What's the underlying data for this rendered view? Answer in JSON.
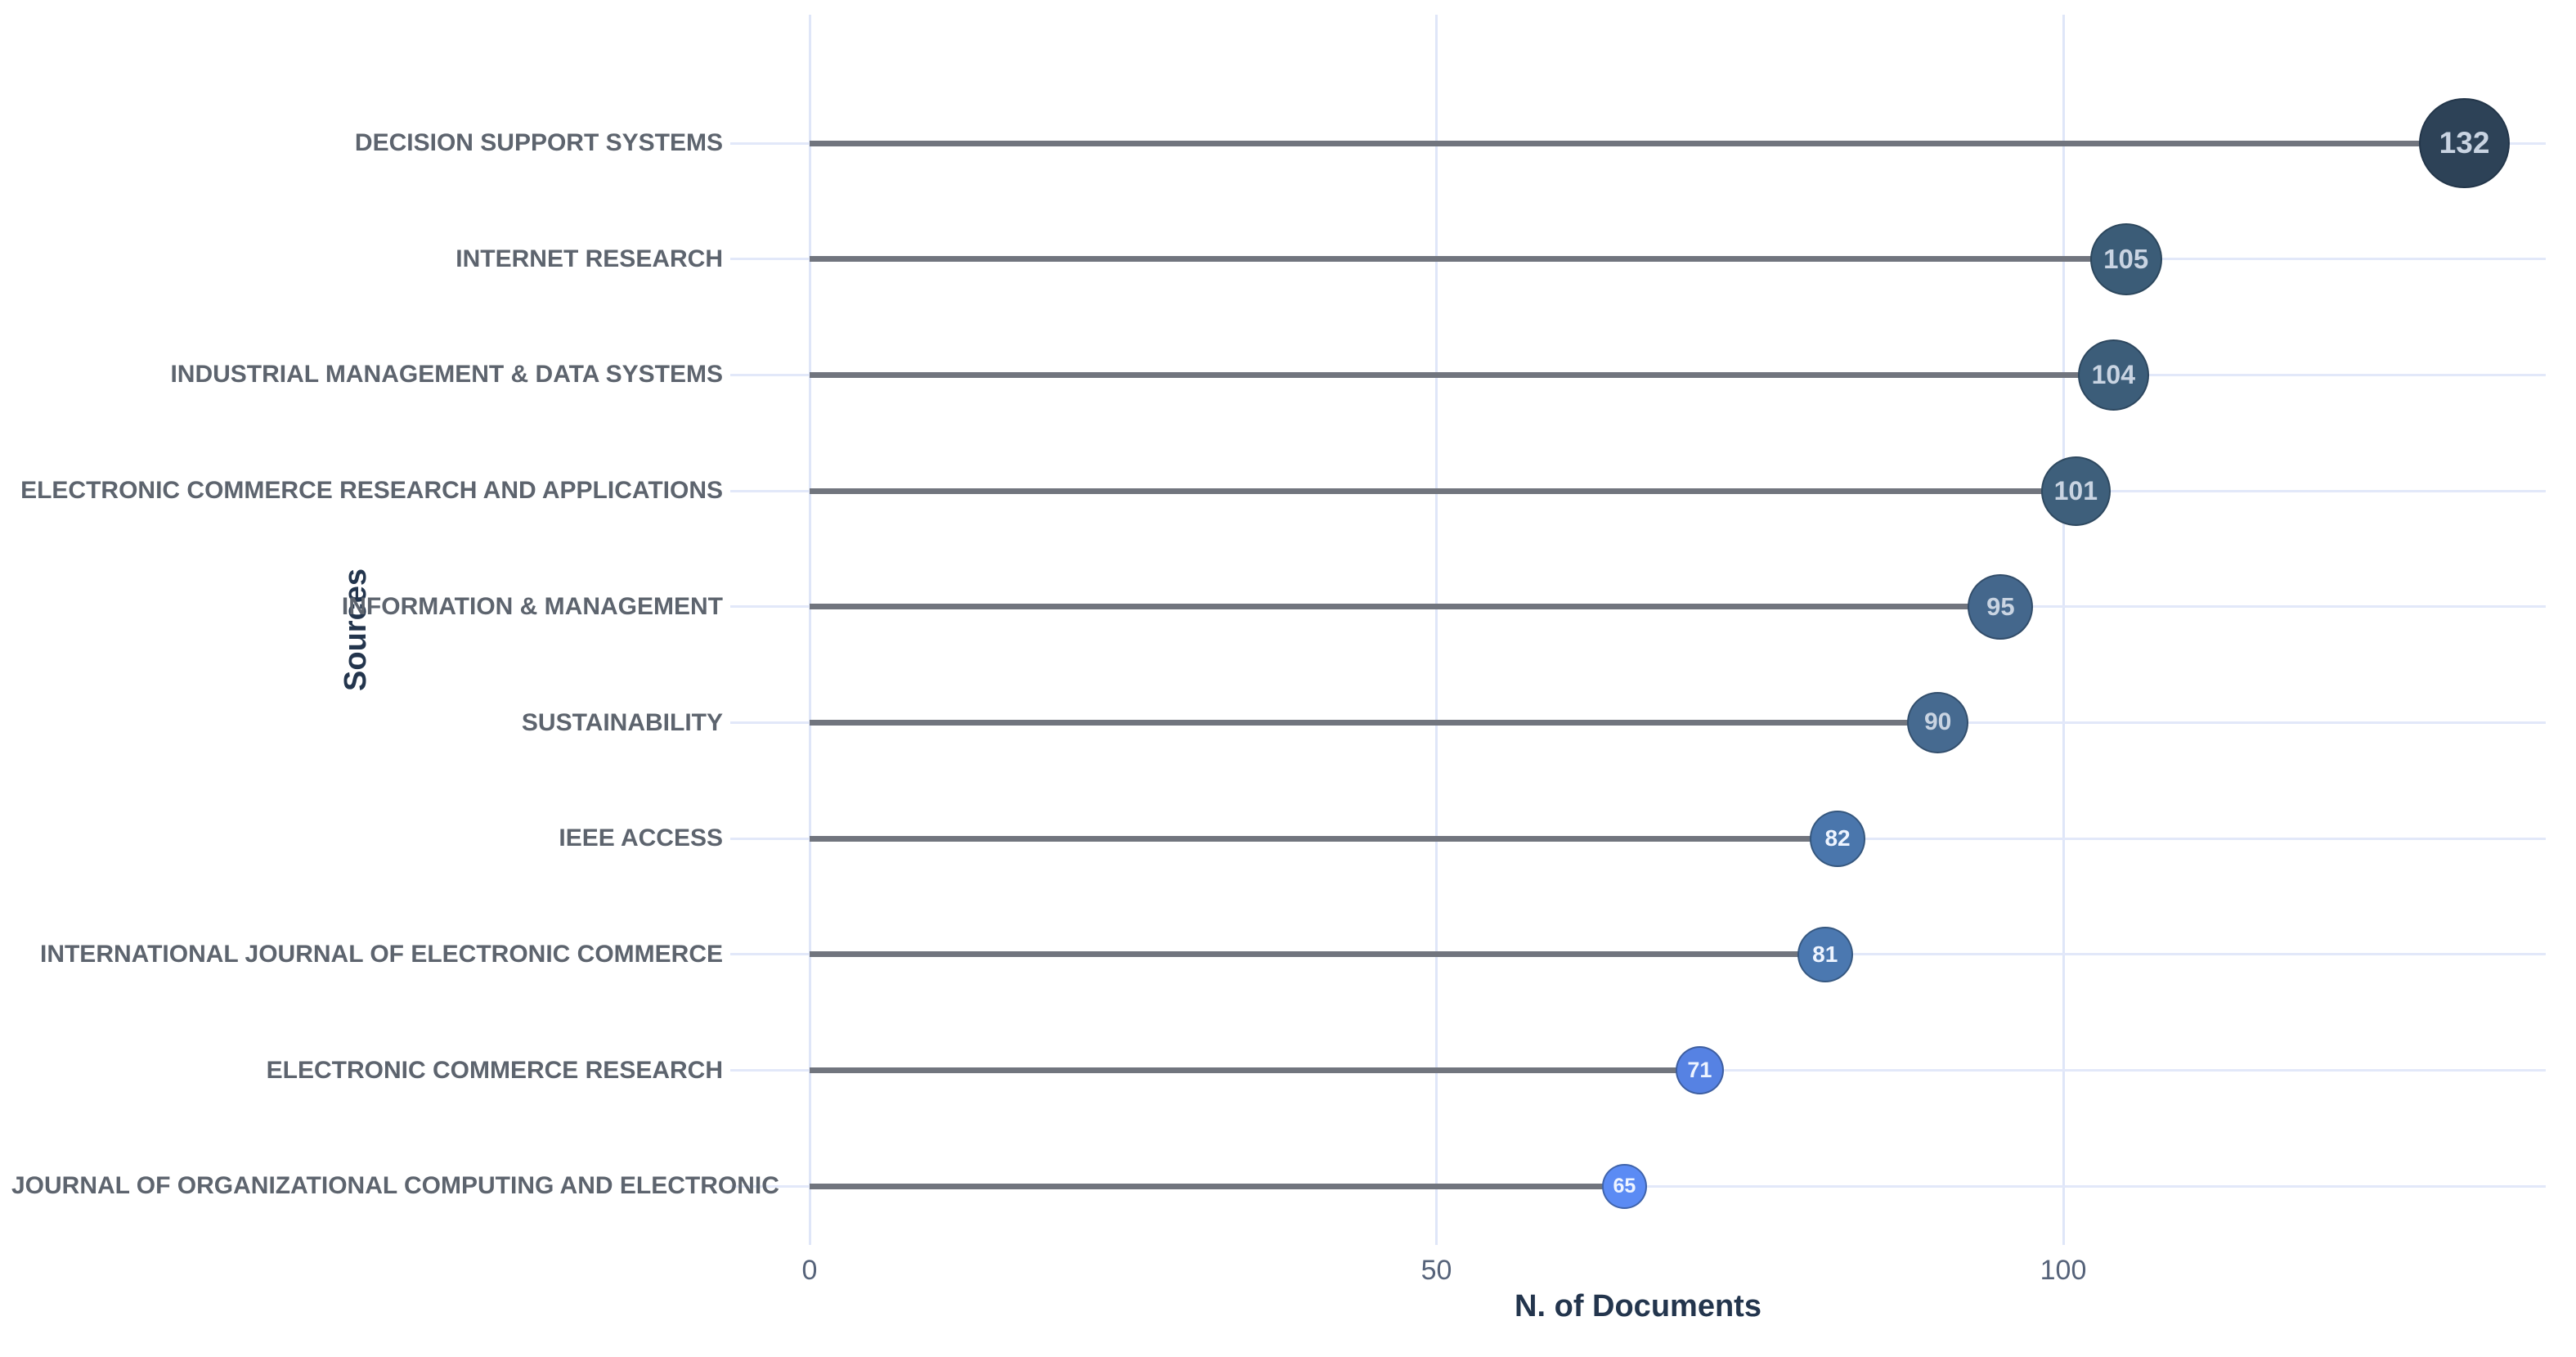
{
  "chart_data": {
    "type": "scatter",
    "variant": "horizontal-lollipop-bubble",
    "title": "",
    "xlabel": "N. of Documents",
    "ylabel": "Sources",
    "categories": [
      "DECISION SUPPORT SYSTEMS",
      "INTERNET RESEARCH",
      "INDUSTRIAL MANAGEMENT & DATA SYSTEMS",
      "ELECTRONIC COMMERCE RESEARCH AND APPLICATIONS",
      "INFORMATION & MANAGEMENT",
      "SUSTAINABILITY",
      "IEEE ACCESS",
      "INTERNATIONAL JOURNAL OF ELECTRONIC COMMERCE",
      "ELECTRONIC COMMERCE RESEARCH",
      "JOURNAL OF ORGANIZATIONAL COMPUTING AND ELECTRONIC"
    ],
    "values": [
      132,
      105,
      104,
      101,
      95,
      90,
      82,
      81,
      71,
      65
    ],
    "point_colors": [
      "#2d4257",
      "#3b5c77",
      "#3c5d79",
      "#3e5f7b",
      "#44678c",
      "#466a90",
      "#4a76ac",
      "#4b78b0",
      "#5682e3",
      "#5b8bf4"
    ],
    "xticks": [
      "0",
      "50",
      "100"
    ],
    "xtick_values": [
      0,
      50,
      100
    ],
    "xlim": [
      -6.3,
      138.6
    ],
    "grid": true,
    "legend": false
  },
  "colors": {
    "background": "#ffffff",
    "gridline": "#e2e8f9",
    "stem": "#71757e",
    "category_label": "#5d646e",
    "tick_label": "#56637a",
    "axis_title": "#23354d",
    "bubble_text_dark_marker": "#c9d4e2",
    "bubble_text_light_marker": "#eef4ff"
  }
}
